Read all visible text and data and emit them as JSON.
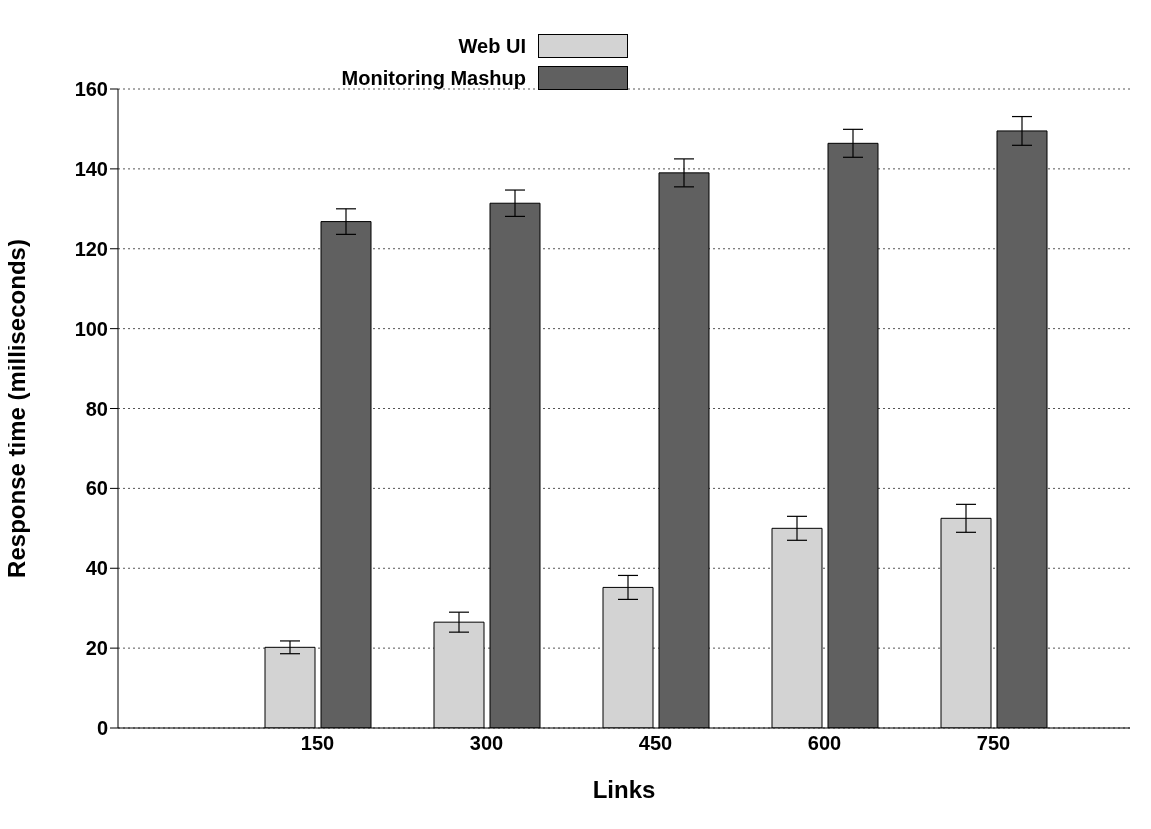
{
  "chart_data": {
    "type": "bar",
    "xlabel": "Links",
    "ylabel": "Response time (milliseconds)",
    "categories": [
      "150",
      "300",
      "450",
      "600",
      "750"
    ],
    "series": [
      {
        "name": "Web UI",
        "color": "#d3d3d3",
        "values": [
          20.2,
          26.5,
          35.2,
          50,
          52.5
        ],
        "errors": [
          1.6,
          2.5,
          3,
          3,
          3.5
        ]
      },
      {
        "name": "Monitoring Mashup",
        "color": "#606060",
        "values": [
          126.8,
          131.4,
          139,
          146.4,
          149.5
        ],
        "errors": [
          3.2,
          3.3,
          3.5,
          3.5,
          3.6
        ]
      }
    ],
    "ylim": [
      0,
      160
    ],
    "yticks": [
      0,
      20,
      40,
      60,
      80,
      100,
      120,
      140,
      160
    ],
    "grid": "y",
    "legend": "top"
  }
}
